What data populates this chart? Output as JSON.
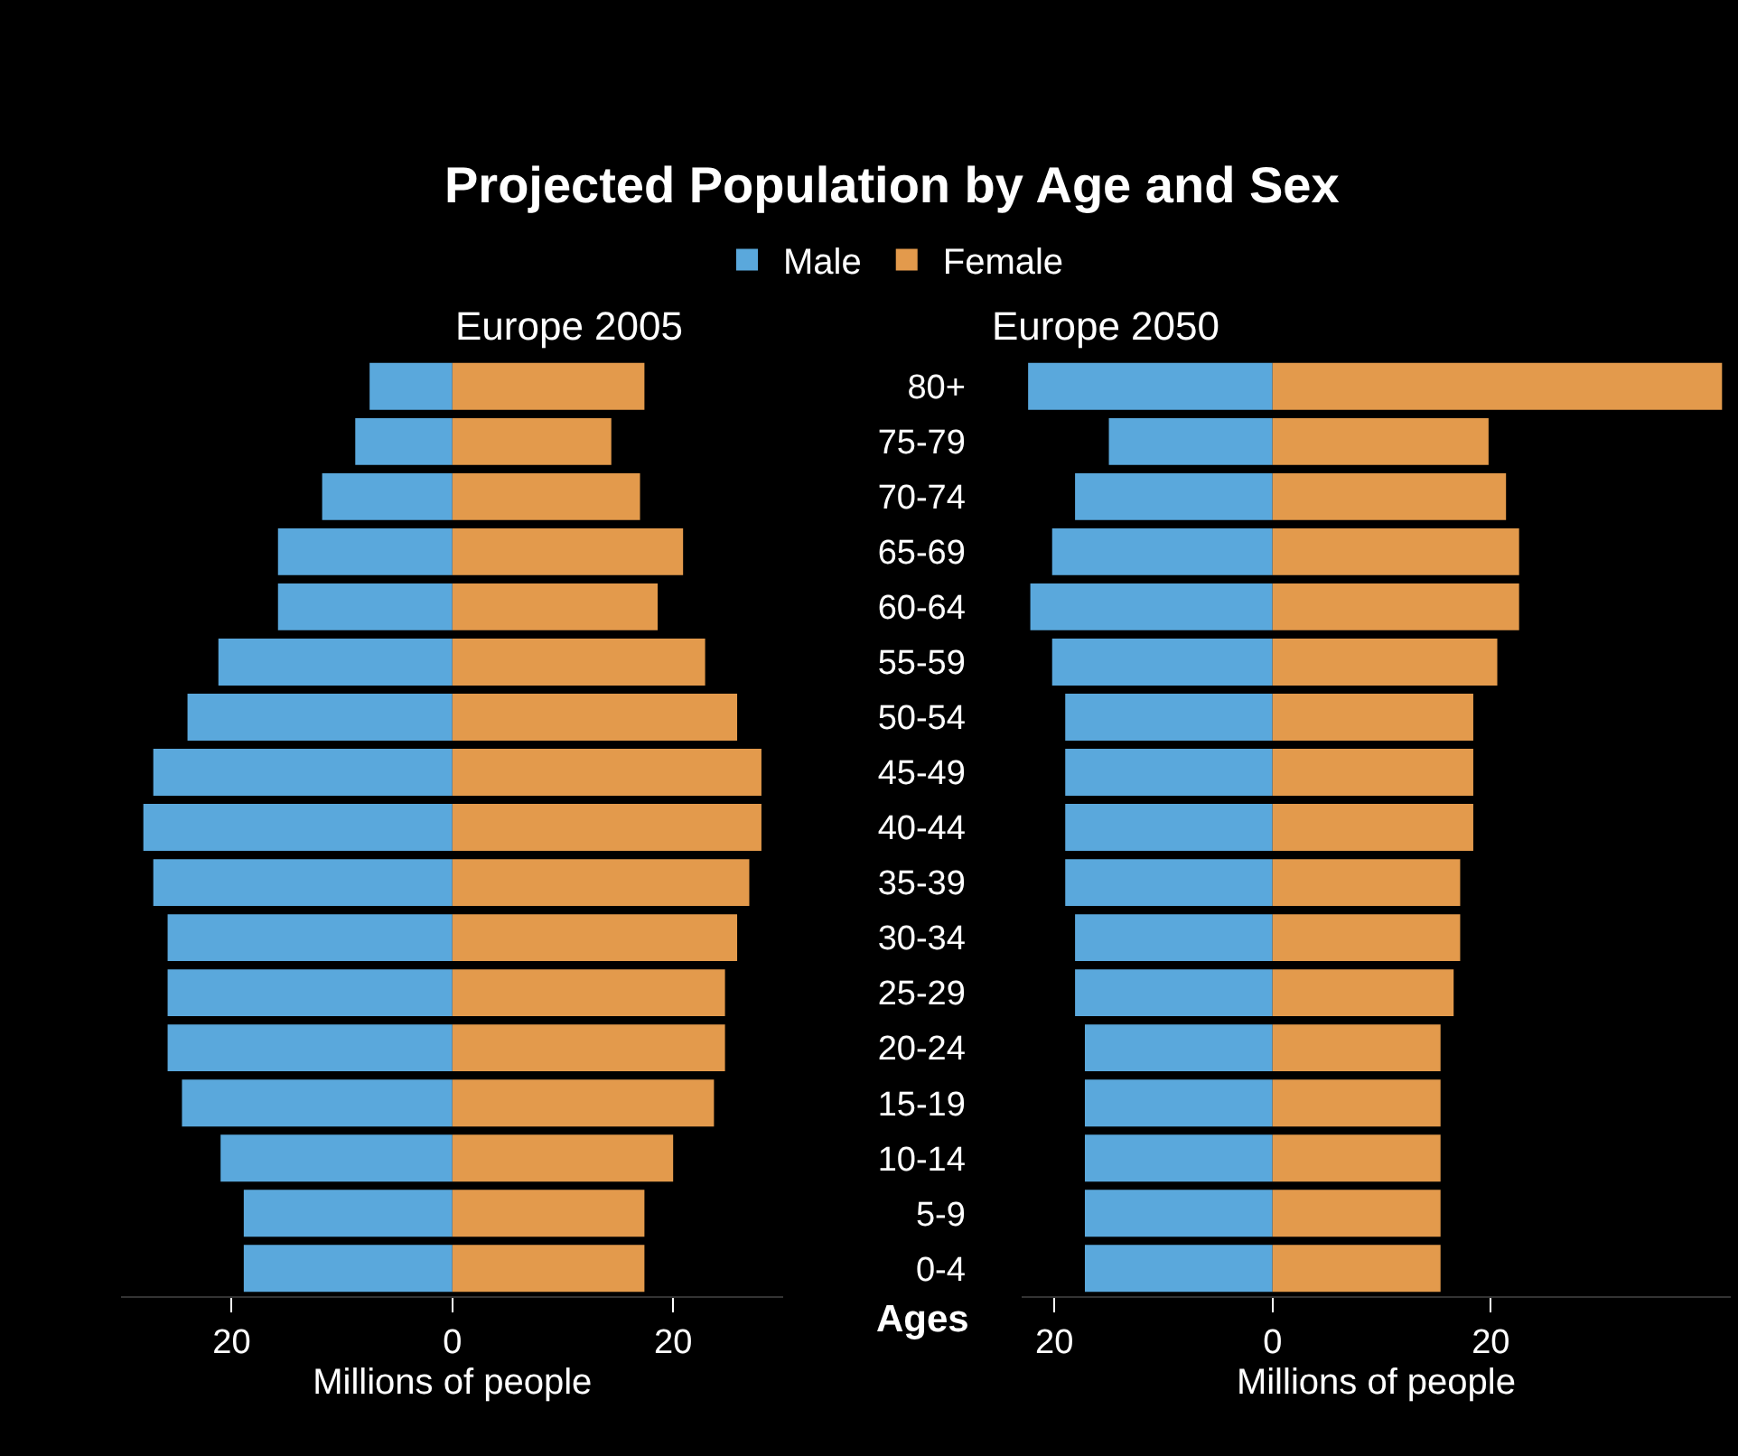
{
  "chart_data": [
    {
      "type": "bar",
      "orientation": "horizontal",
      "stacked": true,
      "title": "Projected Population by Age and Sex",
      "subtitle": "Europe 2005",
      "xlabel": "Millions of people",
      "legend": "top",
      "grid": false,
      "tick_labels": "x",
      "categories": [
        "80+",
        "75-79",
        "70-74",
        "65-69",
        "60-64",
        "55-59",
        "50-54",
        "45-49",
        "40-44",
        "35-39",
        "30-34",
        "25-29",
        "20-24",
        "15-19",
        "10-14",
        "5-9",
        "0-4"
      ],
      "xlim": [
        -30,
        30
      ],
      "xticks": [
        {
          "value": -20,
          "label": "20"
        },
        0,
        20
      ],
      "series": [
        {
          "name": "Male",
          "color": "#5aa8dc",
          "values": [
            -7.5,
            -8.8,
            -11.8,
            -15.8,
            -15.8,
            -21.2,
            -24.0,
            -27.1,
            -28.0,
            -27.1,
            -25.8,
            -25.8,
            -25.8,
            -24.5,
            -21.0,
            -18.9,
            -18.9
          ]
        },
        {
          "name": "Female",
          "color": "#e39a4c",
          "values": [
            17.4,
            14.4,
            17.0,
            20.9,
            18.6,
            22.9,
            25.8,
            28.0,
            28.0,
            26.9,
            25.8,
            24.7,
            24.7,
            23.7,
            20.0,
            17.4,
            17.4
          ]
        }
      ]
    },
    {
      "type": "bar",
      "orientation": "horizontal",
      "stacked": true,
      "title": "Europe 2050",
      "xlabel": "Millions of people",
      "ylabel": "Ages",
      "grid": false,
      "categories": [
        "80+",
        "75-79",
        "70-74",
        "65-69",
        "60-64",
        "55-59",
        "50-54",
        "45-49",
        "40-44",
        "35-39",
        "30-34",
        "25-29",
        "20-24",
        "15-19",
        "10-14",
        "5-9",
        "0-4"
      ],
      "xlim": [
        -23,
        42
      ],
      "xticks": [
        {
          "value": -20,
          "label": "20"
        },
        0,
        20
      ],
      "series": [
        {
          "name": "Male",
          "color": "#5aa8dc",
          "values": [
            -22.4,
            -15.0,
            -18.1,
            -20.2,
            -22.2,
            -20.2,
            -19.0,
            -19.0,
            -19.0,
            -19.0,
            -18.1,
            -18.1,
            -17.2,
            -17.2,
            -17.2,
            -17.2,
            -17.2
          ]
        },
        {
          "name": "Female",
          "color": "#e39a4c",
          "values": [
            41.2,
            19.8,
            21.4,
            22.6,
            22.6,
            20.6,
            18.4,
            18.4,
            18.4,
            17.2,
            17.2,
            16.6,
            15.4,
            15.4,
            15.4,
            15.4,
            15.4
          ]
        }
      ]
    }
  ]
}
